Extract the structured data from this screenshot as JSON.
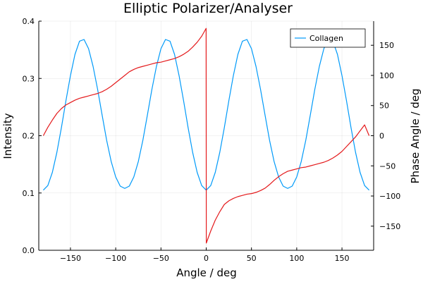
{
  "chart_data": {
    "type": "line",
    "title": "Elliptic Polarizer/Analyser",
    "xlabel": "Angle / deg",
    "ylabel_left": "Intensity",
    "ylabel_right": "Phase Angle / deg",
    "xlim": [
      -185,
      185
    ],
    "ylim_left": [
      0.0,
      0.4
    ],
    "ylim_right": [
      -190,
      190
    ],
    "x_ticks": [
      -150,
      -100,
      -50,
      0,
      50,
      100,
      150
    ],
    "x_tick_labels": [
      "−150",
      "−100",
      "−50",
      "0",
      "50",
      "100",
      "150"
    ],
    "y_left_ticks": [
      0.0,
      0.1,
      0.2,
      0.3,
      0.4
    ],
    "y_left_tick_labels": [
      "0.0",
      "0.1",
      "0.2",
      "0.3",
      "0.4"
    ],
    "y_right_ticks": [
      -150,
      -100,
      -50,
      0,
      50,
      100,
      150
    ],
    "y_right_tick_labels": [
      "−150",
      "−100",
      "−50",
      "0",
      "50",
      "100",
      "150"
    ],
    "grid": true,
    "legend_position": "top-right",
    "series": [
      {
        "name": "Collagen",
        "axis": "left",
        "color": "#009af9",
        "x": [
          -180,
          -175,
          -170,
          -165,
          -160,
          -155,
          -150,
          -145,
          -140,
          -135,
          -130,
          -125,
          -120,
          -115,
          -110,
          -105,
          -100,
          -95,
          -90,
          -85,
          -80,
          -75,
          -70,
          -65,
          -60,
          -55,
          -50,
          -45,
          -40,
          -35,
          -30,
          -25,
          -20,
          -15,
          -10,
          -5,
          0,
          5,
          10,
          15,
          20,
          25,
          30,
          35,
          40,
          45,
          50,
          55,
          60,
          65,
          70,
          75,
          80,
          85,
          90,
          95,
          100,
          105,
          110,
          115,
          120,
          125,
          130,
          135,
          140,
          145,
          150,
          155,
          160,
          165,
          170,
          175,
          180
        ],
        "values": [
          0.105,
          0.113,
          0.136,
          0.171,
          0.214,
          0.261,
          0.305,
          0.342,
          0.365,
          0.368,
          0.352,
          0.321,
          0.281,
          0.236,
          0.192,
          0.155,
          0.128,
          0.112,
          0.108,
          0.112,
          0.128,
          0.155,
          0.192,
          0.236,
          0.281,
          0.321,
          0.352,
          0.368,
          0.365,
          0.342,
          0.305,
          0.261,
          0.214,
          0.171,
          0.136,
          0.113,
          0.105,
          0.113,
          0.136,
          0.171,
          0.214,
          0.261,
          0.305,
          0.342,
          0.365,
          0.368,
          0.352,
          0.321,
          0.281,
          0.236,
          0.192,
          0.155,
          0.128,
          0.112,
          0.108,
          0.112,
          0.128,
          0.155,
          0.192,
          0.236,
          0.281,
          0.321,
          0.352,
          0.368,
          0.365,
          0.342,
          0.305,
          0.261,
          0.214,
          0.171,
          0.136,
          0.113,
          0.105
        ]
      },
      {
        "axis": "right",
        "color": "#e41a1c",
        "x": [
          -180,
          -175,
          -170,
          -165,
          -160,
          -155,
          -150,
          -145,
          -140,
          -135,
          -130,
          -125,
          -120,
          -115,
          -110,
          -105,
          -100,
          -95,
          -90,
          -85,
          -80,
          -75,
          -70,
          -65,
          -60,
          -55,
          -50,
          -45,
          -40,
          -35,
          -30,
          -25,
          -20,
          -15,
          -10,
          -5,
          -0.1,
          0.1,
          5,
          10,
          15,
          20,
          25,
          30,
          35,
          40,
          45,
          50,
          55,
          60,
          65,
          70,
          75,
          80,
          85,
          90,
          95,
          100,
          105,
          110,
          115,
          120,
          125,
          130,
          135,
          140,
          145,
          150,
          155,
          160,
          165,
          170,
          175,
          180
        ],
        "values": [
          0,
          14,
          26,
          37,
          45,
          51,
          55,
          59,
          62,
          64,
          66,
          68,
          70,
          73,
          77,
          82,
          88,
          94,
          100,
          106,
          110,
          113,
          115,
          117,
          119,
          121,
          122,
          124,
          126,
          128,
          131,
          135,
          140,
          147,
          155,
          165,
          178,
          -178,
          -158,
          -140,
          -126,
          -114,
          -108,
          -104,
          -101,
          -99,
          -97,
          -96,
          -94,
          -91,
          -87,
          -81,
          -74,
          -68,
          -63,
          -59,
          -57,
          -55,
          -53,
          -52,
          -50,
          -48,
          -46,
          -44,
          -41,
          -37,
          -32,
          -26,
          -18,
          -10,
          -2,
          8,
          18,
          0
        ]
      }
    ]
  }
}
